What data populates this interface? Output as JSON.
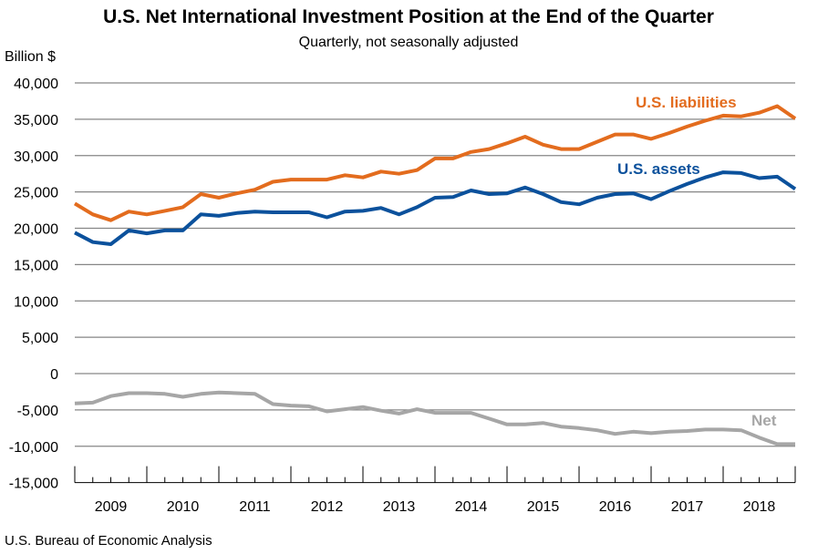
{
  "chart_data": {
    "type": "line",
    "title": "U.S. Net International Investment Position at the End of the Quarter",
    "subtitle": "Quarterly, not seasonally adjusted",
    "ylabel": "Billion $",
    "xlabel": "",
    "source": "U.S. Bureau of Economic Analysis",
    "ylim": [
      -15000,
      40000
    ],
    "ytick_step": 5000,
    "yticks": [
      "-15,000",
      "-10,000",
      "-5,000",
      "0",
      "5,000",
      "10,000",
      "15,000",
      "20,000",
      "25,000",
      "30,000",
      "35,000",
      "40,000"
    ],
    "ytick_values": [
      -15000,
      -10000,
      -5000,
      0,
      5000,
      10000,
      15000,
      20000,
      25000,
      30000,
      35000,
      40000
    ],
    "year_labels": [
      "2009",
      "2010",
      "2011",
      "2012",
      "2013",
      "2014",
      "2015",
      "2016",
      "2017",
      "2018"
    ],
    "x": [
      "2008Q4",
      "2009Q1",
      "2009Q2",
      "2009Q3",
      "2009Q4",
      "2010Q1",
      "2010Q2",
      "2010Q3",
      "2010Q4",
      "2011Q1",
      "2011Q2",
      "2011Q3",
      "2011Q4",
      "2012Q1",
      "2012Q2",
      "2012Q3",
      "2012Q4",
      "2013Q1",
      "2013Q2",
      "2013Q3",
      "2013Q4",
      "2014Q1",
      "2014Q2",
      "2014Q3",
      "2014Q4",
      "2015Q1",
      "2015Q2",
      "2015Q3",
      "2015Q4",
      "2016Q1",
      "2016Q2",
      "2016Q3",
      "2016Q4",
      "2017Q1",
      "2017Q2",
      "2017Q3",
      "2017Q4",
      "2018Q1",
      "2018Q2",
      "2018Q3",
      "2018Q4"
    ],
    "grid": true,
    "series": [
      {
        "name": "U.S. liabilities",
        "color": "#E36C1E",
        "values": [
          23400,
          21900,
          21100,
          22300,
          21900,
          22400,
          22900,
          24700,
          24200,
          24800,
          25300,
          26400,
          26700,
          26700,
          26700,
          27300,
          27000,
          27800,
          27500,
          28000,
          29600,
          29600,
          30500,
          30900,
          31700,
          32600,
          31500,
          30900,
          30900,
          31900,
          32900,
          32900,
          32300,
          33100,
          34000,
          34800,
          35500,
          35400,
          35900,
          36800,
          35100
        ]
      },
      {
        "name": "U.S. assets",
        "color": "#0B519C",
        "values": [
          19400,
          18100,
          17800,
          19700,
          19300,
          19700,
          19700,
          21900,
          21700,
          22100,
          22300,
          22200,
          22200,
          22200,
          21500,
          22300,
          22400,
          22800,
          21900,
          22900,
          24200,
          24300,
          25200,
          24700,
          24800,
          25600,
          24700,
          23600,
          23300,
          24200,
          24700,
          24800,
          24000,
          25100,
          26100,
          27000,
          27700,
          27600,
          26900,
          27100,
          25400
        ]
      },
      {
        "name": "Net",
        "color": "#A6A6A6",
        "values": [
          -4100,
          -4000,
          -3100,
          -2700,
          -2700,
          -2800,
          -3200,
          -2800,
          -2600,
          -2700,
          -2800,
          -4200,
          -4400,
          -4500,
          -5200,
          -4900,
          -4600,
          -5100,
          -5500,
          -4900,
          -5400,
          -5400,
          -5400,
          -6200,
          -7000,
          -7000,
          -6800,
          -7300,
          -7500,
          -7800,
          -8300,
          -8000,
          -8200,
          -8000,
          -7900,
          -7700,
          -7700,
          -7800,
          -8800,
          -9700,
          -9700
        ]
      }
    ],
    "annotations": [
      "U.S. liabilities",
      "U.S. assets",
      "Net"
    ]
  }
}
